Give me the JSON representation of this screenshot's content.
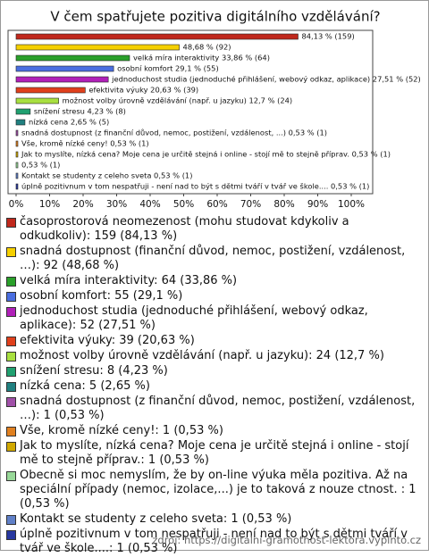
{
  "chart_data": {
    "type": "hbar",
    "title": "V čem spatřujete pozitiva digitálního vzdělávání?",
    "categories": [
      "časoprostorová neomezenost (mohu studovat kdykoliv a odkudkoliv): 159 (84,13 %)",
      "snadná dostupnost (finanční důvod, nemoc, postižení, vzdálenost, …): 92 (48,68 %)",
      "velká míra interaktivity: 64 (33,86 %)",
      "osobní komfort: 55 (29,1 %)",
      "jednoduchost studia (jednoduché přihlášení, webový odkaz, aplikace): 52 (27,51 %)",
      "efektivita výuky: 39 (20,63 %)",
      "možnost volby úrovně vzdělávání (např. u jazyku): 24 (12,7 %)",
      "snížení stresu: 8 (4,23 %)",
      "nízká cena: 5 (2,65 %)",
      "snadná dostupnost (z finanční důvod, nemoc, postižení, vzdálenost, …): 1 (0,53 %)",
      "Vše, kromě nízké ceny!: 1 (0,53 %)",
      "Jak to myslíte, nízká cena? Moje cena je určitě stejná i online - stojí mě to stejně příprav.: 1 (0,53 %)",
      "Obecně si moc nemyslím, že by on-line výuka měla pozitiva. Až na speciální případy (nemoc, izolace,...) je to taková z nouze ctnost. : 1 (0,53 %)",
      "Kontakt se studenty z celeho sveta: 1 (0,53 %)",
      "úplně pozitivnum v tom nespatřuji - není nad to být s dětmi tváří v tvář ve škole....: 1 (0,53 %)"
    ],
    "values": [
      84.13,
      48.68,
      33.86,
      29.1,
      27.51,
      20.63,
      12.7,
      4.23,
      2.65,
      0.53,
      0.53,
      0.53,
      0.53,
      0.53,
      0.53
    ],
    "value_labels": [
      "84,13 % (159)",
      "48,68 % (92)",
      "velká míra interaktivity 33,86 % (64)",
      "osobní komfort 29,1 % (55)",
      "jednoduchost studia (jednoduché přihlášení, webový odkaz, aplikace) 27,51 % (52)",
      "efektivita výuky 20,63 % (39)",
      "možnost volby úrovně vzdělávání (např. u jazyku) 12,7 % (24)",
      "snížení stresu 4,23 % (8)",
      "nízká cena 2,65 % (5)",
      "snadná dostupnost (z finanční důvod, nemoc, postižení, vzdálenost, ...) 0,53 % (1)",
      "Vše, kromě nízké ceny! 0,53 % (1)",
      "Jak to myslíte, nízká cena? Moje cena je určitě stejná i online - stojí mě to stejně příprav. 0,53 % (1)",
      "0,53 % (1)",
      "Kontakt se studenty z celeho sveta 0,53 % (1)",
      "úplně pozitivnum v tom nespatřuji - není nad to být s dětmi tváří v tvář ve škole.... 0,53 % (1)"
    ],
    "colors": [
      "#c0281c",
      "#f5d000",
      "#2aa02a",
      "#4a6ee0",
      "#b020b8",
      "#e0401c",
      "#a8e040",
      "#20a070",
      "#208080",
      "#a050a8",
      "#e08020",
      "#d0a800",
      "#98d898",
      "#6080c8",
      "#2838a0"
    ],
    "xlim": [
      0,
      100
    ],
    "xticks": [
      {
        "value": 0,
        "label": "0%"
      },
      {
        "value": 10,
        "label": "10%"
      },
      {
        "value": 20,
        "label": "20%"
      },
      {
        "value": 30,
        "label": "30%"
      },
      {
        "value": 40,
        "label": "40%"
      },
      {
        "value": 50,
        "label": "50%"
      },
      {
        "value": 60,
        "label": "60%"
      },
      {
        "value": 70,
        "label": "70%"
      },
      {
        "value": 80,
        "label": "80%"
      },
      {
        "value": 90,
        "label": "90%"
      },
      {
        "value": 100,
        "label": "100%"
      }
    ],
    "source": "zdroj: https://digitalni-gramotnost-lektora.vyplnto.cz"
  }
}
